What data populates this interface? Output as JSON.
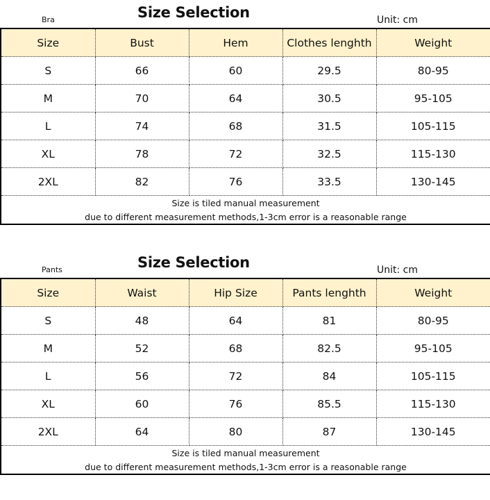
{
  "colors": {
    "header_bg": "#FFF2CC",
    "border": "#000000"
  },
  "tables": [
    {
      "category": "Bra",
      "title": "Size Selection",
      "unit": "Unit: cm",
      "headers": [
        "Size",
        "Bust",
        "Hem",
        "Clothes lenghth",
        "Weight"
      ],
      "rows": [
        [
          "S",
          "66",
          "60",
          "29.5",
          "80-95"
        ],
        [
          "M",
          "70",
          "64",
          "30.5",
          "95-105"
        ],
        [
          "L",
          "74",
          "68",
          "31.5",
          "105-115"
        ],
        [
          "XL",
          "78",
          "72",
          "32.5",
          "115-130"
        ],
        [
          "2XL",
          "82",
          "76",
          "33.5",
          "130-145"
        ]
      ],
      "notes": [
        "Size is tiled manual measurement",
        "due to different measurement methods,1-3cm error is a reasonable range"
      ]
    },
    {
      "category": "Pants",
      "title": "Size Selection",
      "unit": "Unit: cm",
      "headers": [
        "Size",
        "Waist",
        "Hip Size",
        "Pants lenghth",
        "Weight"
      ],
      "rows": [
        [
          "S",
          "48",
          "64",
          "81",
          "80-95"
        ],
        [
          "M",
          "52",
          "68",
          "82.5",
          "95-105"
        ],
        [
          "L",
          "56",
          "72",
          "84",
          "105-115"
        ],
        [
          "XL",
          "60",
          "76",
          "85.5",
          "115-130"
        ],
        [
          "2XL",
          "64",
          "80",
          "87",
          "130-145"
        ]
      ],
      "notes": [
        "Size is tiled manual measurement",
        "due to different measurement methods,1-3cm error is a reasonable range"
      ]
    }
  ]
}
